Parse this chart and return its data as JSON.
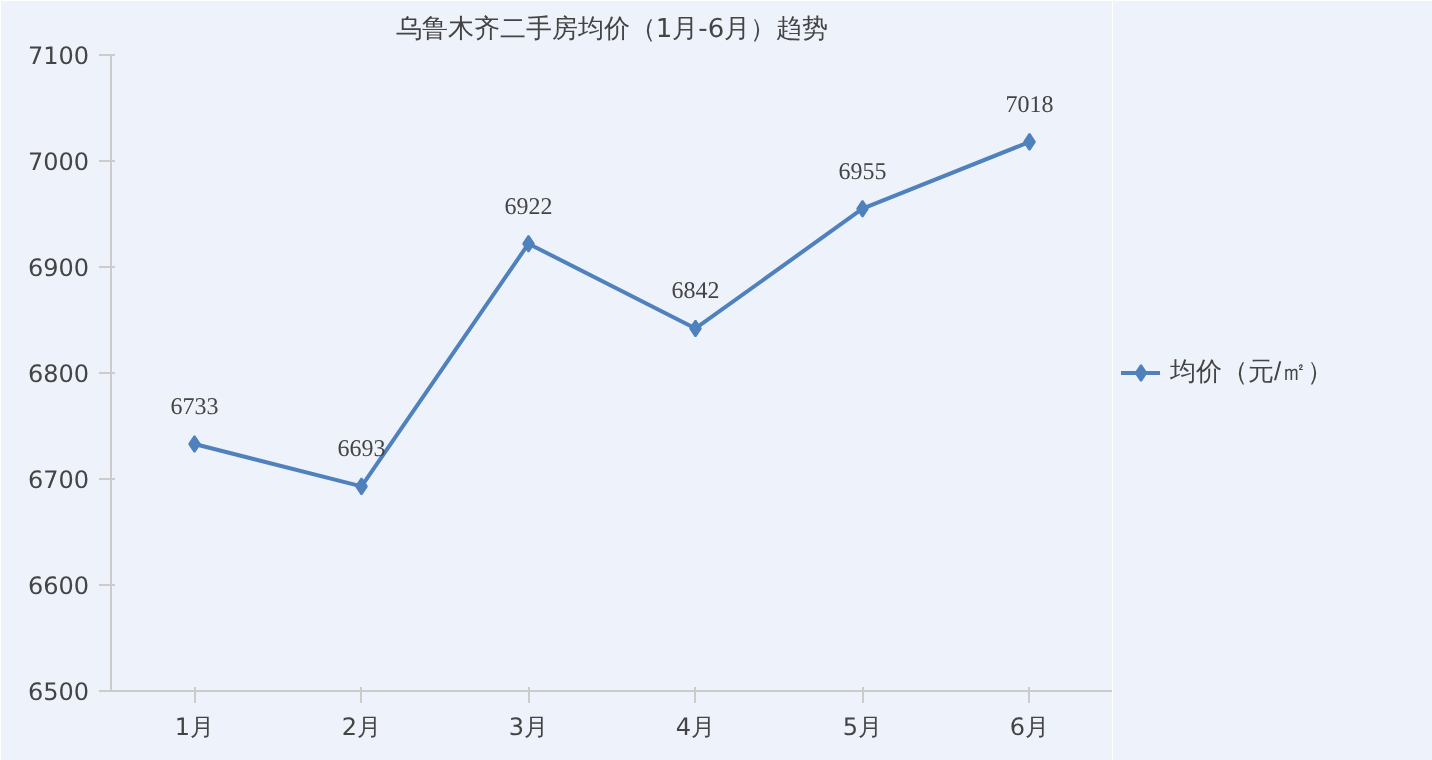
{
  "chart_data": {
    "type": "line",
    "title": "乌鲁木齐二手房均价（1月-6月）趋势",
    "categories": [
      "1月",
      "2月",
      "3月",
      "4月",
      "5月",
      "6月"
    ],
    "series": [
      {
        "name": "均价（元/㎡）",
        "color": "#4f81bd",
        "values": [
          6733,
          6693,
          6922,
          6842,
          6955,
          7018
        ]
      }
    ],
    "ylim": [
      6500,
      7100
    ],
    "yticks": [
      6500,
      6600,
      6700,
      6800,
      6900,
      7000,
      7100
    ],
    "grid": false,
    "legend": "right",
    "marker": "diamond",
    "data_labels": true
  }
}
